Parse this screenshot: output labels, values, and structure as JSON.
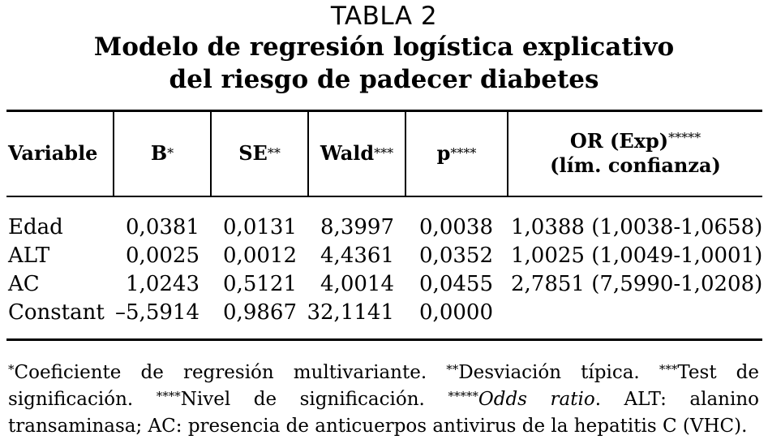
{
  "table": {
    "label": "TABLA 2",
    "title_line1": "Modelo de regresión logística explicativo",
    "title_line2": "del riesgo de padecer diabetes",
    "headers": {
      "variable": "Variable",
      "b": "B",
      "b_mark": "*",
      "se": "SE",
      "se_mark": "**",
      "wald": "Wald",
      "wald_mark": "***",
      "p": "p",
      "p_mark": "****",
      "or_line1": "OR (Exp)",
      "or_mark": "*****",
      "or_line2": "(lím. confianza)"
    },
    "rows": [
      {
        "variable": "Edad",
        "b": "0,0381",
        "se": "0,0131",
        "wald": "8,3997",
        "p": "0,0038",
        "or": "1,0388 (1,0038-1,0658)"
      },
      {
        "variable": "ALT",
        "b": "0,0025",
        "se": "0,0012",
        "wald": "4,4361",
        "p": "0,0352",
        "or": "1,0025 (1,0049-1,0001)"
      },
      {
        "variable": "AC",
        "b": "1,0243",
        "se": "0,5121",
        "wald": "4,0014",
        "p": "0,0455",
        "or": "2,7851 (7,5990-1,0208)"
      },
      {
        "variable": "Constant",
        "b": "–5,5914",
        "se": "0,9867",
        "wald": "32,1141",
        "p": "0,0000",
        "or": ""
      }
    ]
  },
  "footnote": {
    "m1": "*",
    "t1": "Coeficiente de regresión multivariante. ",
    "m2": "**",
    "t2": "Desviación típica. ",
    "m3": "***",
    "t3": "Test de significación. ",
    "m4": "****",
    "t4": "Nivel de significación. ",
    "m5": "*****",
    "t5_italic": "Odds ratio",
    "t5": ". ALT: alanino transaminasa; AC: presencia de anticuerpos antivirus de la hepatitis C (VHC)."
  }
}
